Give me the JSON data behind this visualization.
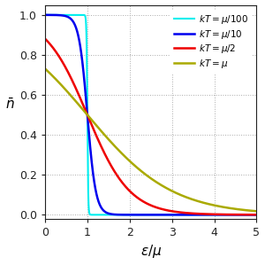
{
  "title": "",
  "xlabel": "$\\epsilon/\\mu$",
  "ylabel": "$\\bar{n}$",
  "xlim": [
    0,
    5
  ],
  "ylim": [
    -0.02,
    1.05
  ],
  "xticks": [
    0,
    1,
    2,
    3,
    4,
    5
  ],
  "yticks": [
    0.0,
    0.2,
    0.4,
    0.6,
    0.8,
    1.0
  ],
  "curves": [
    {
      "kT_ratio": 0.01,
      "color": "#00EEEE",
      "label": "$kT=\\mu/100$",
      "lw": 1.5
    },
    {
      "kT_ratio": 0.1,
      "color": "#0000EE",
      "label": "$kT=\\mu/10$",
      "lw": 1.8
    },
    {
      "kT_ratio": 0.5,
      "color": "#EE0000",
      "label": "$kT=\\mu/2$",
      "lw": 1.8
    },
    {
      "kT_ratio": 1.0,
      "color": "#AAAA00",
      "label": "$kT=\\mu$",
      "lw": 1.8
    }
  ],
  "grid_color": "#aaaaaa",
  "bg_color": "#ffffff",
  "legend_loc": "upper right",
  "figsize": [
    3.0,
    2.99
  ],
  "dpi": 100
}
